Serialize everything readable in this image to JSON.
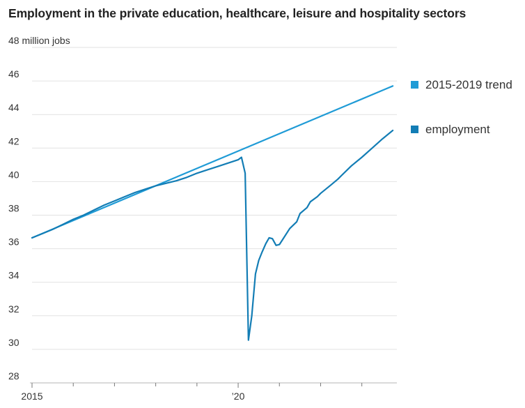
{
  "chart_data": {
    "type": "line",
    "title": "Employment in the private education, healthcare, leisure and hospitality sectors",
    "y_unit_label": "48 million jobs",
    "ylim": [
      28,
      48
    ],
    "yticks": [
      28,
      30,
      32,
      34,
      36,
      38,
      40,
      42,
      44,
      46,
      48
    ],
    "ytick_labels": [
      "28",
      "30",
      "32",
      "34",
      "36",
      "38",
      "40",
      "42",
      "44",
      "46",
      "48 million jobs"
    ],
    "xlim": [
      2015.0,
      2023.85
    ],
    "xticks": [
      2015,
      2016,
      2017,
      2018,
      2019,
      2020,
      2021,
      2022,
      2023
    ],
    "xtick_labels": [
      {
        "x": 2015,
        "label": "2015"
      },
      {
        "x": 2020,
        "label": "’20"
      }
    ],
    "grid": true,
    "legend_position": "right",
    "series": [
      {
        "name": "2015-2019 trend",
        "color": "#1f9bd6",
        "points": [
          [
            2015.0,
            36.65
          ],
          [
            2023.75,
            45.7
          ]
        ]
      },
      {
        "name": "employment",
        "color": "#137db5",
        "points": [
          [
            2015.0,
            36.65
          ],
          [
            2015.25,
            36.9
          ],
          [
            2015.5,
            37.15
          ],
          [
            2015.75,
            37.45
          ],
          [
            2016.0,
            37.75
          ],
          [
            2016.25,
            38.0
          ],
          [
            2016.5,
            38.3
          ],
          [
            2016.75,
            38.6
          ],
          [
            2017.0,
            38.85
          ],
          [
            2017.25,
            39.1
          ],
          [
            2017.5,
            39.35
          ],
          [
            2017.75,
            39.55
          ],
          [
            2018.0,
            39.75
          ],
          [
            2018.25,
            39.9
          ],
          [
            2018.5,
            40.05
          ],
          [
            2018.75,
            40.25
          ],
          [
            2019.0,
            40.5
          ],
          [
            2019.25,
            40.7
          ],
          [
            2019.5,
            40.9
          ],
          [
            2019.75,
            41.1
          ],
          [
            2020.0,
            41.3
          ],
          [
            2020.08,
            41.45
          ],
          [
            2020.17,
            40.5
          ],
          [
            2020.25,
            30.55
          ],
          [
            2020.33,
            32.0
          ],
          [
            2020.42,
            34.5
          ],
          [
            2020.5,
            35.3
          ],
          [
            2020.58,
            35.8
          ],
          [
            2020.67,
            36.3
          ],
          [
            2020.75,
            36.65
          ],
          [
            2020.83,
            36.6
          ],
          [
            2020.92,
            36.2
          ],
          [
            2021.0,
            36.25
          ],
          [
            2021.08,
            36.55
          ],
          [
            2021.25,
            37.2
          ],
          [
            2021.42,
            37.6
          ],
          [
            2021.5,
            38.1
          ],
          [
            2021.67,
            38.45
          ],
          [
            2021.75,
            38.8
          ],
          [
            2021.92,
            39.1
          ],
          [
            2022.0,
            39.3
          ],
          [
            2022.25,
            39.8
          ],
          [
            2022.42,
            40.15
          ],
          [
            2022.5,
            40.35
          ],
          [
            2022.75,
            40.95
          ],
          [
            2023.0,
            41.45
          ],
          [
            2023.25,
            42.0
          ],
          [
            2023.5,
            42.55
          ],
          [
            2023.75,
            43.05
          ]
        ]
      }
    ]
  }
}
